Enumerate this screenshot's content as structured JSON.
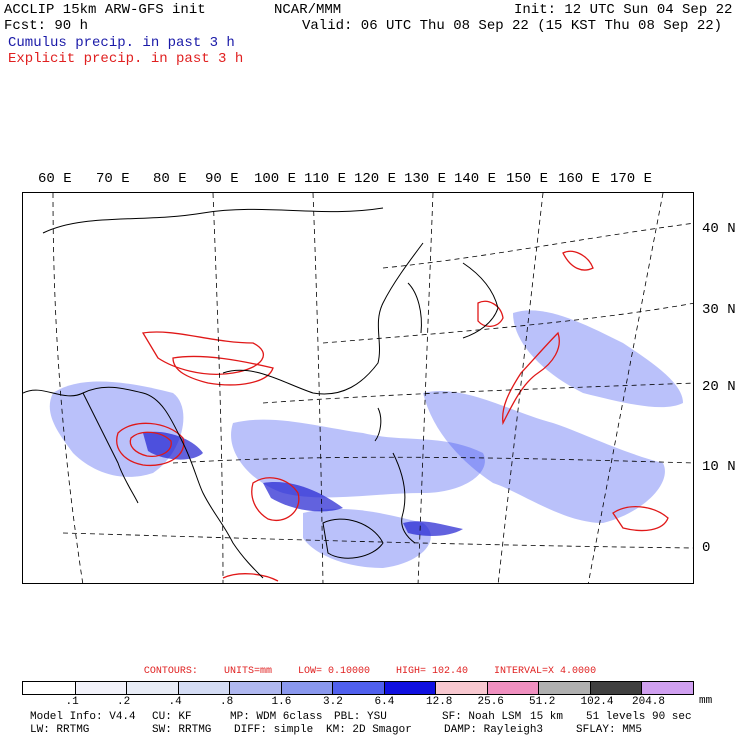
{
  "header": {
    "line1_left": "ACCLIP 15km ARW-GFS init",
    "line1_center": "NCAR/MMM",
    "line1_right": "Init: 12 UTC Sun 04 Sep 22",
    "line2_left": "Fcst:   90 h",
    "line2_right": "Valid: 06 UTC Thu 08 Sep 22 (15 KST Thu 08 Sep 22)",
    "legend_cumulus": "Cumulus precip. in past 3 h",
    "legend_explicit": "Explicit precip. in past 3 h"
  },
  "map": {
    "lon_labels": [
      "60 E",
      "70 E",
      "80 E",
      "90 E",
      "100 E",
      "110 E",
      "120 E",
      "130 E",
      "140 E",
      "150 E",
      "160 E",
      "170 E"
    ],
    "lat_labels": [
      "40 N",
      "30 N",
      "20 N",
      "10 N",
      "0"
    ],
    "colors": {
      "cumulus": "#3a4cf0",
      "explicit": "#e01818",
      "coast": "#000000",
      "grid": "#000000"
    }
  },
  "contours": {
    "label": "CONTOURS:",
    "units": "UNITS=mm",
    "low": "LOW= 0.10000",
    "high": "HIGH=  102.40",
    "interval": "INTERVAL=X  4.0000"
  },
  "colorbar": {
    "ticks": [
      ".1",
      ".2",
      ".4",
      ".8",
      "1.6",
      "3.2",
      "6.4",
      "12.8",
      "25.6",
      "51.2",
      "102.4",
      "204.8"
    ],
    "unit": "mm",
    "colors": [
      "#ffffff",
      "#f2f2fa",
      "#e8ecf6",
      "#d4dcf4",
      "#b0b8f0",
      "#8a98ee",
      "#5060ee",
      "#1010e0",
      "#f8c8d0",
      "#f090c0",
      "#b0b0b0",
      "#404040",
      "#d0a0f0"
    ]
  },
  "model_info": {
    "line1": [
      "Model Info: V4.4",
      "CU: KF",
      "MP: WDM 6class",
      "PBL: YSU",
      "SF: Noah LSM",
      "15 km",
      "51 levels",
      "90 sec"
    ],
    "line2": [
      "LW: RRTMG",
      "SW: RRTMG",
      "DIFF: simple",
      "KM: 2D Smagor",
      "DAMP: Rayleigh3",
      "SFLAY: MM5"
    ]
  }
}
